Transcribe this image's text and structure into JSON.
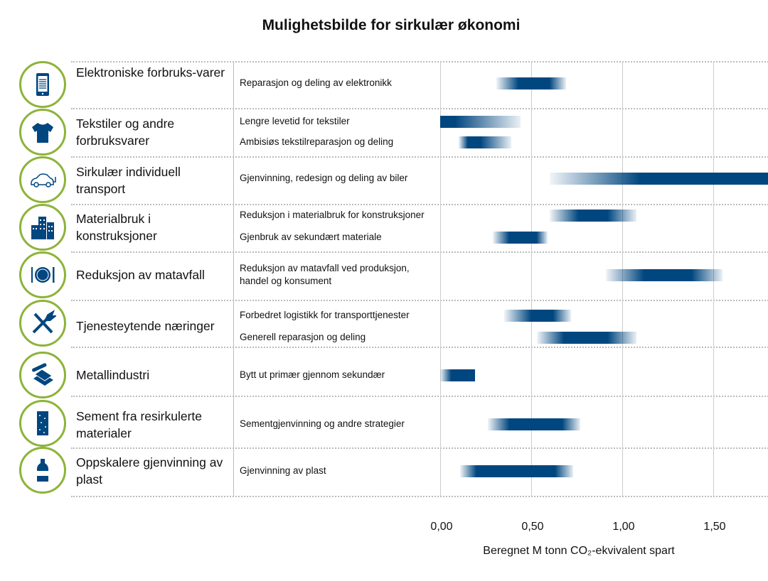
{
  "chart_data": {
    "type": "bar",
    "subtype": "floating-range-gradient",
    "title": "Mulighetsbilde for sirkulær økonomi",
    "xlabel": "Beregnet M tonn CO₂-ekvivalent spart",
    "ylabel": "",
    "xlim": [
      0,
      1.8
    ],
    "xticks": [
      "0,00",
      "0,50",
      "1,00",
      "1,50"
    ],
    "xtick_values": [
      0,
      0.5,
      1.0,
      1.5
    ],
    "grid": "vertical",
    "colors": {
      "bar": "#00467f",
      "icon_ring": "#8db33a",
      "icon": "#00467f"
    },
    "categories": [
      {
        "label": "Elektroniske forbruks-varer",
        "icon": "tablet-icon",
        "items": [
          {
            "label": "Reparasjon og deling av elektronikk",
            "low": 0.31,
            "core_low": 0.43,
            "core_high": 0.6,
            "high": 0.69
          }
        ]
      },
      {
        "label": "Tekstiler og andre forbruksvarer",
        "icon": "tshirt-icon",
        "items": [
          {
            "label": "Lengre levetid for tekstiler",
            "low": 0.0,
            "core_low": 0.0,
            "core_high": 0.08,
            "high": 0.44
          },
          {
            "label": "Ambisiøs tekstilreparasjon og deling",
            "low": 0.1,
            "core_low": 0.15,
            "core_high": 0.22,
            "high": 0.39
          }
        ]
      },
      {
        "label": "Sirkulær individuell transport",
        "icon": "car-icon",
        "items": [
          {
            "label": "Gjenvinning, redesign og deling av biler",
            "low": 0.6,
            "core_low": 1.1,
            "core_high": 1.8,
            "high": 1.8
          }
        ]
      },
      {
        "label": "Materialbruk i konstruksjoner",
        "icon": "buildings-icon",
        "items": [
          {
            "label": "Reduksjon i materialbruk for konstruksjoner",
            "low": 0.6,
            "core_low": 0.76,
            "core_high": 0.92,
            "high": 1.08
          },
          {
            "label": "Gjenbruk av sekundært materiale",
            "low": 0.29,
            "core_low": 0.38,
            "core_high": 0.53,
            "high": 0.59
          }
        ]
      },
      {
        "label": "Reduksjon av matavfall",
        "icon": "plate-icon",
        "items": [
          {
            "label": "Reduksjon av matavfall ved produksjon, handel og konsument",
            "low": 0.91,
            "core_low": 1.12,
            "core_high": 1.38,
            "high": 1.55
          }
        ]
      },
      {
        "label": "Tjenesteytende næringer",
        "icon": "tools-icon",
        "items": [
          {
            "label": "Forbedret logistikk for transporttjenester",
            "low": 0.35,
            "core_low": 0.5,
            "core_high": 0.62,
            "high": 0.72
          },
          {
            "label": "Generell reparasjon og deling",
            "low": 0.53,
            "core_low": 0.68,
            "core_high": 0.92,
            "high": 1.08
          }
        ]
      },
      {
        "label": "Metallindustri",
        "icon": "metal-icon",
        "items": [
          {
            "label": "Bytt ut primær gjennom sekundær",
            "low": 0.0,
            "core_low": 0.06,
            "core_high": 0.19,
            "high": 0.19
          }
        ]
      },
      {
        "label": "Sement fra resirkulerte materialer",
        "icon": "cement-icon",
        "items": [
          {
            "label": "Sementgjenvinning og andre strategier",
            "low": 0.26,
            "core_low": 0.38,
            "core_high": 0.67,
            "high": 0.77
          }
        ]
      },
      {
        "label": "Oppskalere gjenvinning av plast",
        "icon": "bottle-icon",
        "items": [
          {
            "label": "Gjenvinning av plast",
            "low": 0.11,
            "core_low": 0.2,
            "core_high": 0.63,
            "high": 0.73
          }
        ]
      }
    ]
  }
}
